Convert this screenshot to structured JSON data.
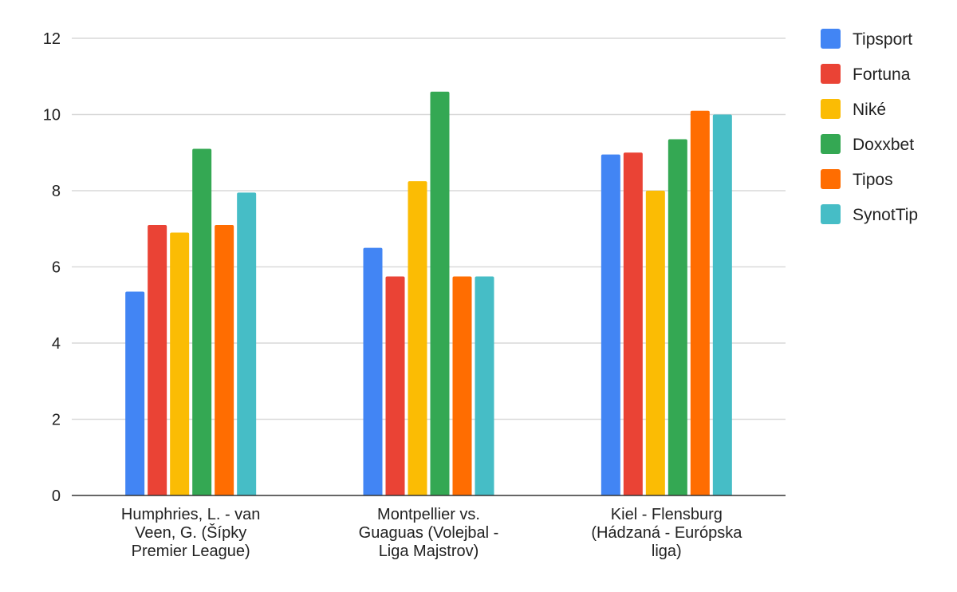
{
  "chart_data": {
    "type": "bar",
    "title": "",
    "xlabel": "",
    "ylabel": "",
    "ylim": [
      0,
      12
    ],
    "yticks": [
      0,
      2,
      4,
      6,
      8,
      10,
      12
    ],
    "grid": true,
    "legend_position": "right",
    "categories": [
      [
        "Humphries, L. - van",
        "Veen, G. (Šípky",
        "Premier League)"
      ],
      [
        "Montpellier vs.",
        "Guaguas (Volejbal -",
        "Liga Majstrov)"
      ],
      [
        "Kiel - Flensburg",
        "(Hádzaná - Európska",
        "liga)"
      ]
    ],
    "series": [
      {
        "name": "Tipsport",
        "color": "#4285f4",
        "values": [
          5.35,
          6.5,
          8.95
        ]
      },
      {
        "name": "Fortuna",
        "color": "#ea4335",
        "values": [
          7.1,
          5.75,
          9.0
        ]
      },
      {
        "name": "Niké",
        "color": "#fbbc04",
        "values": [
          6.9,
          8.25,
          8.0
        ]
      },
      {
        "name": "Doxxbet",
        "color": "#34a853",
        "values": [
          9.1,
          10.6,
          9.35
        ]
      },
      {
        "name": "Tipos",
        "color": "#ff6d01",
        "values": [
          7.1,
          5.75,
          10.1
        ]
      },
      {
        "name": "SynotTip",
        "color": "#46bdc6",
        "values": [
          7.95,
          5.75,
          10.0
        ]
      }
    ]
  }
}
